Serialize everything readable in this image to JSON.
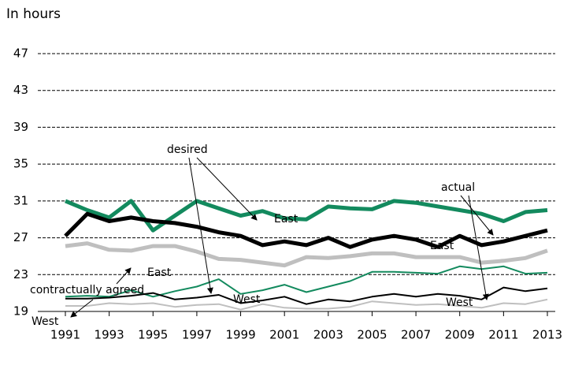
{
  "chart_data": {
    "type": "line",
    "y_axis_label": "In hours",
    "x": [
      1991,
      1992,
      1993,
      1994,
      1995,
      1996,
      1997,
      1998,
      1999,
      2000,
      2001,
      2002,
      2003,
      2004,
      2005,
      2006,
      2007,
      2008,
      2009,
      2010,
      2011,
      2012,
      2013
    ],
    "xlim": [
      1991,
      2013
    ],
    "xticks": [
      1991,
      1993,
      1995,
      1997,
      1999,
      2001,
      2003,
      2005,
      2007,
      2009,
      2011,
      2013
    ],
    "ylim": [
      19,
      47
    ],
    "yticks": [
      19,
      23,
      27,
      31,
      35,
      39,
      43,
      47
    ],
    "grid": true,
    "series": [
      {
        "color": "#138a5e",
        "line_width": 5,
        "values": [
          31,
          30,
          29.2,
          31,
          27.8,
          29.4,
          31,
          30.2,
          29.4,
          29.9,
          29.1,
          29,
          30.4,
          30.2,
          30.1,
          31,
          30.8,
          30.4,
          30,
          29.6,
          28.8,
          29.8,
          30
        ]
      },
      {
        "color": "#000000",
        "line_width": 5,
        "values": [
          27.2,
          29.6,
          28.8,
          29.2,
          28.8,
          28.6,
          28.2,
          27.6,
          27.2,
          26.2,
          26.6,
          26.2,
          27,
          26,
          26.8,
          27.2,
          26.8,
          26,
          27.2,
          26.2,
          26.6,
          27.2,
          27.8
        ]
      },
      {
        "color": "#bfbfbf",
        "line_width": 5,
        "values": [
          26.1,
          26.4,
          25.7,
          25.6,
          26.1,
          26.1,
          25.5,
          24.7,
          24.6,
          24.3,
          24,
          24.9,
          24.8,
          25,
          25.3,
          25.3,
          24.9,
          24.9,
          24.9,
          24.3,
          24.5,
          24.8,
          25.6
        ]
      },
      {
        "color": "#138a5e",
        "line_width": 2,
        "values": [
          20.6,
          20.7,
          20.6,
          21.3,
          20.6,
          21.2,
          21.7,
          22.5,
          20.9,
          21.3,
          21.9,
          21.1,
          21.7,
          22.3,
          23.3,
          23.3,
          23.2,
          23.1,
          23.9,
          23.6,
          23.9,
          23.1,
          23.2
        ]
      },
      {
        "color": "#000000",
        "line_width": 2,
        "values": [
          20.4,
          20.4,
          20.5,
          20.7,
          21,
          20.3,
          20.5,
          20.8,
          19.9,
          20.2,
          20.6,
          19.8,
          20.3,
          20.1,
          20.6,
          20.9,
          20.6,
          20.9,
          20.7,
          20.3,
          21.6,
          21.2,
          21.5
        ]
      },
      {
        "color": "#bfbfbf",
        "line_width": 2,
        "values": [
          19.6,
          19.6,
          19.9,
          19.8,
          19.9,
          19.5,
          19.7,
          19.8,
          19.2,
          19.8,
          19.4,
          19.3,
          19.3,
          19.5,
          20.1,
          19.9,
          19.7,
          19.8,
          19.6,
          19.4,
          19.9,
          19.8,
          20.3
        ]
      }
    ],
    "annotations": [
      "desired",
      "actual",
      "East",
      "East",
      "East",
      "West",
      "West",
      "West",
      "contractually agreed"
    ]
  }
}
